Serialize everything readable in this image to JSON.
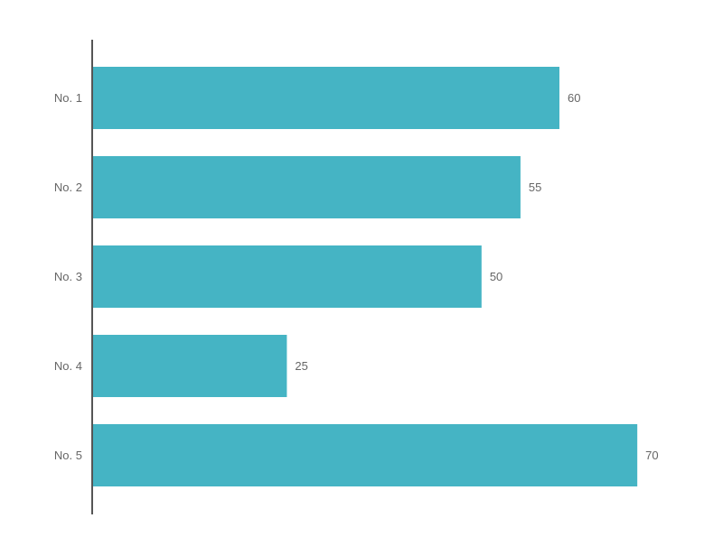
{
  "chart_data": {
    "type": "bar",
    "orientation": "horizontal",
    "categories": [
      "No. 1",
      "No. 2",
      "No. 3",
      "No. 4",
      "No. 5"
    ],
    "values": [
      60,
      55,
      50,
      25,
      70
    ],
    "data_labels": true,
    "grid": false,
    "bar_color": "#45B4C4",
    "axis_color": "#555555",
    "label_color": "#666666"
  }
}
